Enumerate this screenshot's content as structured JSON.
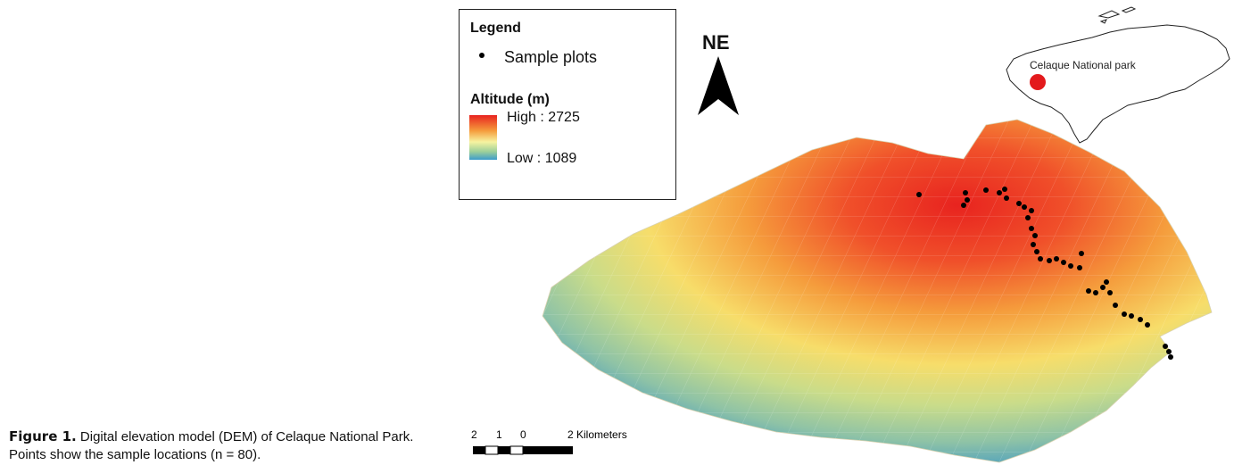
{
  "figure": {
    "label": "Figure 1.",
    "caption": "Digital elevation model (DEM) of Celaque National Park. Points show the sample locations (n = 80)."
  },
  "legend": {
    "title": "Legend",
    "point_label": "Sample plots",
    "altitude_title": "Altitude (m)",
    "high_label": "High : 2725",
    "low_label": "Low : 1089"
  },
  "north_arrow": {
    "label": "NE"
  },
  "inset": {
    "label": "Celaque National park",
    "marker_color": "#e31a1c"
  },
  "scale_bar": {
    "ticks": [
      "2",
      "1",
      "0",
      "2 Kilometers"
    ]
  },
  "colors": {
    "high": "#e8231f",
    "mid": "#f6f3a0",
    "low": "#3c9ccb"
  }
}
